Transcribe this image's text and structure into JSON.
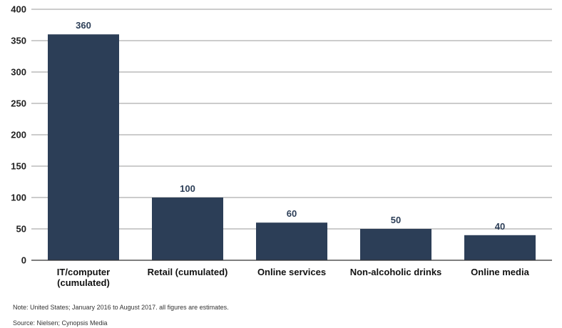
{
  "chart_data": {
    "type": "bar",
    "categories": [
      "IT/computer\n(cumulated)",
      "Retail (cumulated)",
      "Online services",
      "Non-alcoholic drinks",
      "Online media"
    ],
    "values": [
      360,
      100,
      60,
      50,
      40
    ],
    "data_labels": [
      "360",
      "100",
      "60",
      "50",
      "40"
    ],
    "y_ticks": [
      0,
      50,
      100,
      150,
      200,
      250,
      300,
      350,
      400
    ],
    "ylim": [
      0,
      400
    ],
    "grid": true,
    "legend": "none",
    "bar_color": "#2c3e57"
  },
  "note": "Note: United States; January 2016 to August 2017. all figures are estimates.",
  "source": "Source: Nielsen; Cynopsis Media"
}
